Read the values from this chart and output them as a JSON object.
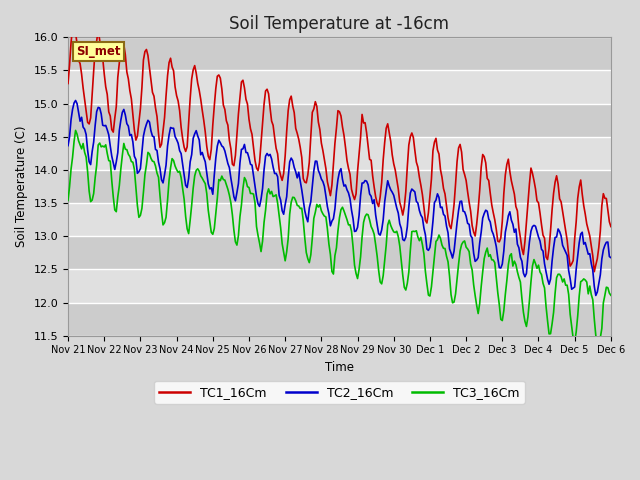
{
  "title": "Soil Temperature at -16cm",
  "xlabel": "Time",
  "ylabel": "Soil Temperature (C)",
  "ylim": [
    11.5,
    16.0
  ],
  "background_color": "#d8d8d8",
  "plot_bg_color": "#d8d8d8",
  "grid_color": "#ffffff",
  "annotation_text": "SI_met",
  "annotation_bg": "#ffff99",
  "annotation_border": "#8b6914",
  "annotation_text_color": "#8b0000",
  "x_tick_labels": [
    "Nov 21",
    "Nov 22",
    "Nov 23",
    "Nov 24",
    "Nov 25",
    "Nov 26",
    "Nov 27",
    "Nov 28",
    "Nov 29",
    "Nov 30",
    "Dec 1",
    "Dec 2",
    "Dec 3",
    "Dec 4",
    "Dec 5",
    "Dec 6"
  ],
  "TC1_color": "#cc0000",
  "TC2_color": "#0000cc",
  "TC3_color": "#00bb00",
  "linewidth": 1.2,
  "title_fontsize": 12
}
